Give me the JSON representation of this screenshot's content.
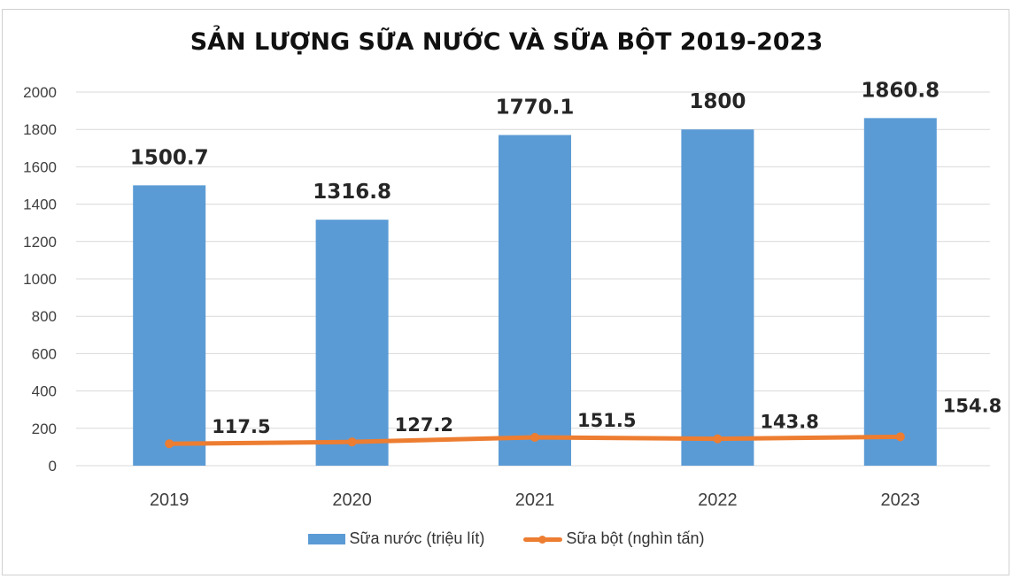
{
  "chart_data": {
    "type": "bar",
    "title": "SẢN LƯỢNG SỮA NƯỚC VÀ SỮA BỘT  2019-2023",
    "xlabel": "",
    "ylabel": "",
    "ylim": [
      0,
      2000
    ],
    "yticks": [
      0,
      200,
      400,
      600,
      800,
      1000,
      1200,
      1400,
      1600,
      1800,
      2000
    ],
    "grid": true,
    "legend_position": "bottom",
    "categories": [
      "2019",
      "2020",
      "2021",
      "2022",
      "2023"
    ],
    "series": [
      {
        "name": "Sữa nước (triệu lít)",
        "type": "bar",
        "color": "#5b9bd5",
        "values": [
          1500.7,
          1316.8,
          1770.1,
          1800,
          1860.8
        ],
        "labels": [
          "1500.7",
          "1316.8",
          "1770.1",
          "1800",
          "1860.8"
        ]
      },
      {
        "name": "Sữa bột (nghìn tấn)",
        "type": "line",
        "color": "#ed7d31",
        "values": [
          117.5,
          127.2,
          151.5,
          143.8,
          154.8
        ],
        "labels": [
          "117.5",
          "127.2",
          "151.5",
          "143.8",
          "154.8"
        ]
      }
    ]
  },
  "legend": {
    "bar_label": "Sữa nước (triệu lít)",
    "line_label": "Sữa bột (nghìn tấn)"
  }
}
